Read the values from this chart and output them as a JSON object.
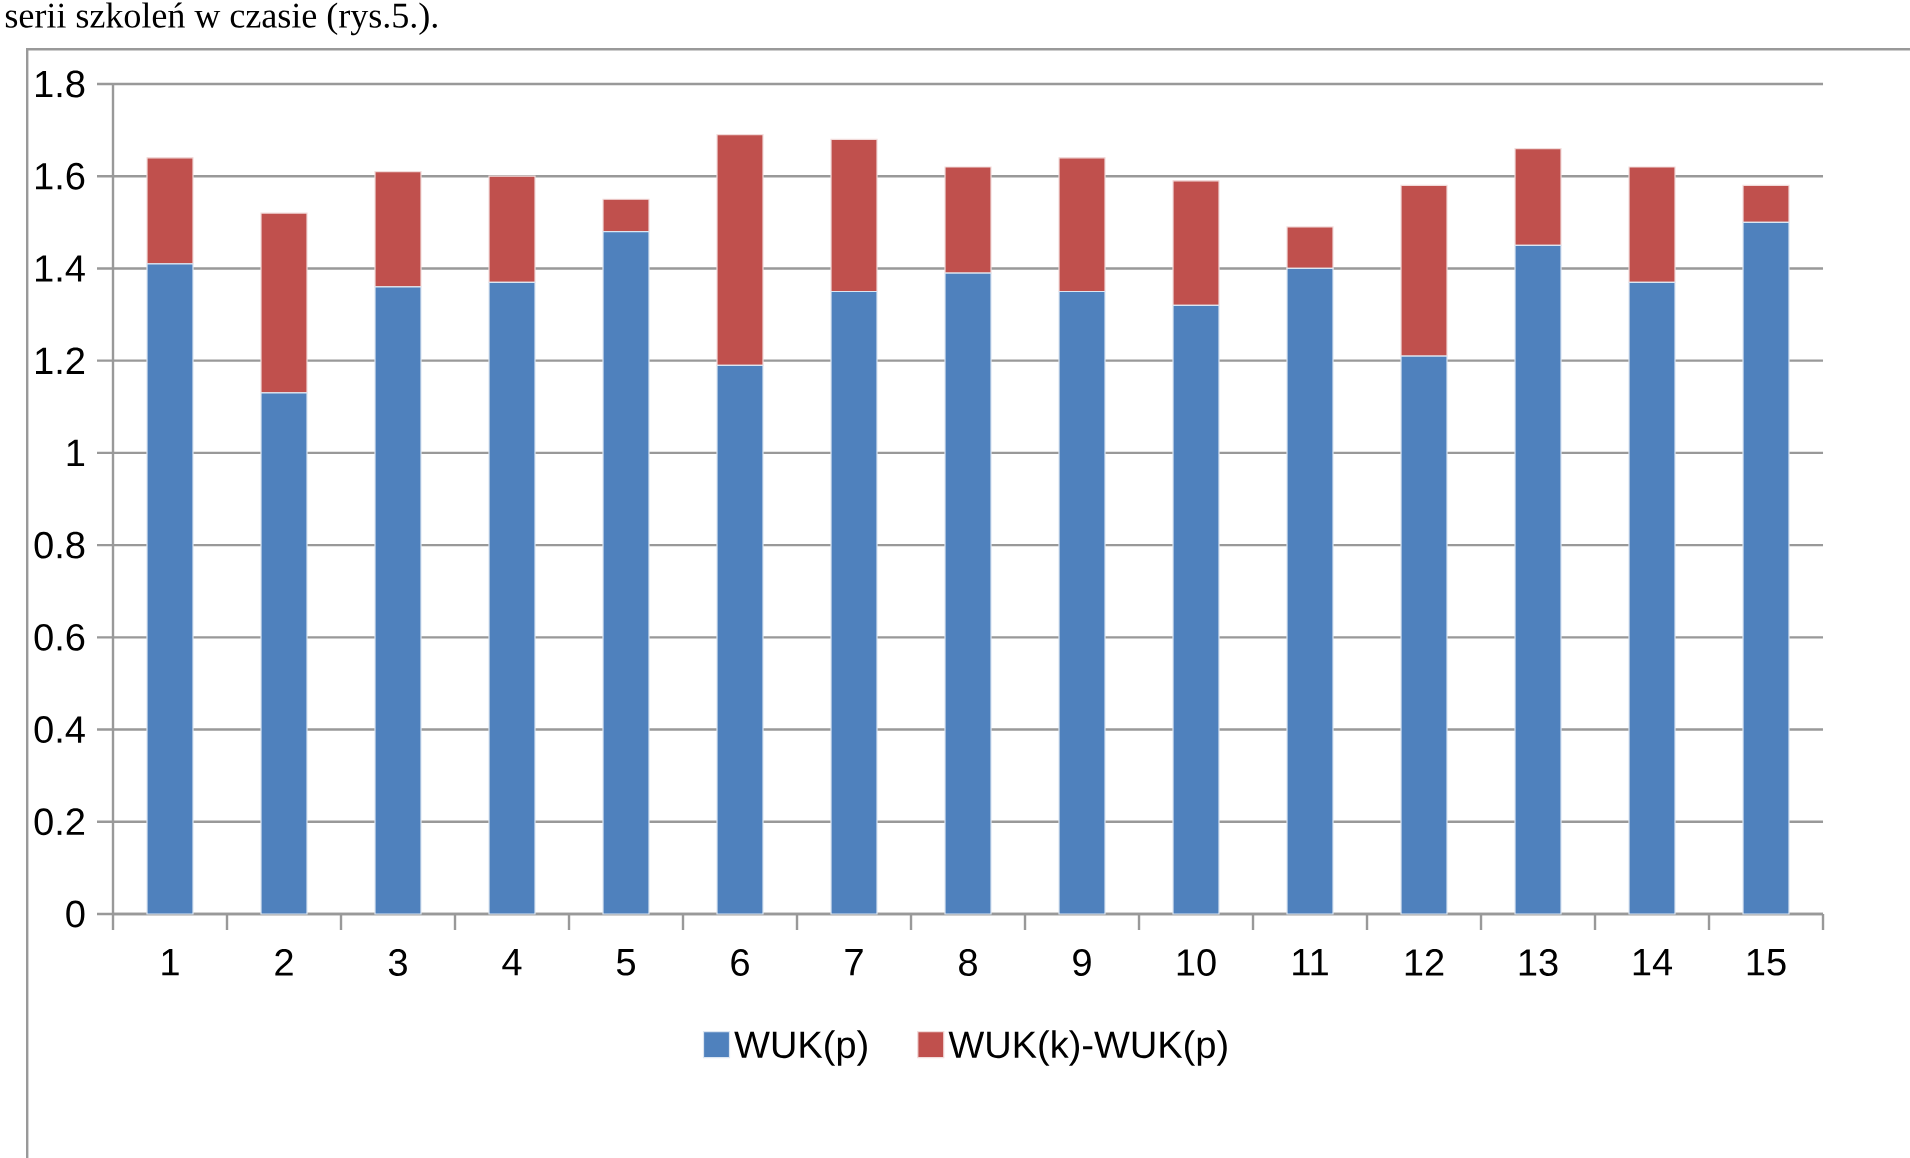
{
  "chart_data": {
    "type": "bar",
    "stacked": true,
    "annotations": [
      "serii szkoleń w czasie (rys.5.)."
    ],
    "categories": [
      "1",
      "2",
      "3",
      "4",
      "5",
      "6",
      "7",
      "8",
      "9",
      "10",
      "11",
      "12",
      "13",
      "14",
      "15"
    ],
    "series": [
      {
        "name": "WUK(p)",
        "color": "#4f81bd",
        "values": [
          1.41,
          1.13,
          1.36,
          1.37,
          1.48,
          1.19,
          1.35,
          1.39,
          1.35,
          1.32,
          1.4,
          1.21,
          1.45,
          1.37,
          1.5
        ]
      },
      {
        "name": "WUK(k)-WUK(p)",
        "color": "#c0504d",
        "values": [
          0.23,
          0.39,
          0.25,
          0.23,
          0.07,
          0.5,
          0.33,
          0.23,
          0.29,
          0.27,
          0.09,
          0.37,
          0.21,
          0.25,
          0.08
        ]
      }
    ],
    "ylim": [
      0,
      1.8
    ],
    "yticks": [
      0,
      0.2,
      0.4,
      0.6,
      0.8,
      1,
      1.2,
      1.4,
      1.6,
      1.8
    ],
    "grid": "y",
    "legend": "bottom"
  }
}
